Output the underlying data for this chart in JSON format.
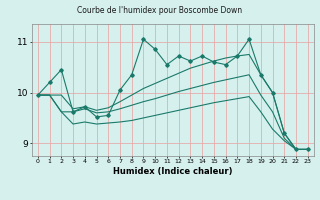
{
  "title": "Courbe de l'humidex pour Boscombe Down",
  "xlabel": "Humidex (Indice chaleur)",
  "bg_color": "#d6f0ee",
  "grid_color": "#e8a0a0",
  "line_color": "#1a7a6a",
  "xlim": [
    -0.5,
    23.5
  ],
  "ylim": [
    8.75,
    11.35
  ],
  "yticks": [
    9,
    10,
    11
  ],
  "xticks": [
    0,
    1,
    2,
    3,
    4,
    5,
    6,
    7,
    8,
    9,
    10,
    11,
    12,
    13,
    14,
    15,
    16,
    17,
    18,
    19,
    20,
    21,
    22,
    23
  ],
  "main_x": [
    0,
    1,
    2,
    3,
    4,
    5,
    6,
    7,
    8,
    9,
    10,
    11,
    12,
    13,
    14,
    15,
    16,
    17,
    18,
    19,
    20,
    21,
    22,
    23
  ],
  "main_y": [
    9.95,
    10.2,
    10.45,
    9.62,
    9.72,
    9.52,
    9.55,
    10.05,
    10.35,
    11.05,
    10.85,
    10.55,
    10.72,
    10.62,
    10.72,
    10.6,
    10.55,
    10.72,
    11.05,
    10.35,
    10.0,
    9.2,
    8.88,
    8.88
  ],
  "upper_x": [
    0,
    1,
    2,
    3,
    4,
    5,
    6,
    7,
    8,
    9,
    10,
    11,
    12,
    13,
    14,
    15,
    16,
    17,
    18,
    19,
    20,
    21,
    22,
    23
  ],
  "upper_y": [
    9.95,
    9.95,
    9.95,
    9.68,
    9.72,
    9.65,
    9.7,
    9.82,
    9.95,
    10.08,
    10.18,
    10.28,
    10.38,
    10.48,
    10.55,
    10.62,
    10.68,
    10.72,
    10.75,
    10.35,
    10.0,
    9.2,
    8.88,
    8.88
  ],
  "mid_x": [
    0,
    1,
    2,
    3,
    4,
    5,
    6,
    7,
    8,
    9,
    10,
    11,
    12,
    13,
    14,
    15,
    16,
    17,
    18,
    19,
    20,
    21,
    22,
    23
  ],
  "mid_y": [
    9.95,
    9.95,
    9.62,
    9.62,
    9.68,
    9.6,
    9.62,
    9.68,
    9.75,
    9.82,
    9.88,
    9.95,
    10.02,
    10.08,
    10.14,
    10.2,
    10.25,
    10.3,
    10.35,
    9.95,
    9.62,
    9.1,
    8.88,
    8.88
  ],
  "lower_x": [
    0,
    1,
    2,
    3,
    4,
    5,
    6,
    7,
    8,
    9,
    10,
    11,
    12,
    13,
    14,
    15,
    16,
    17,
    18,
    19,
    20,
    21,
    22,
    23
  ],
  "lower_y": [
    9.95,
    9.95,
    9.62,
    9.38,
    9.42,
    9.38,
    9.4,
    9.42,
    9.45,
    9.5,
    9.55,
    9.6,
    9.65,
    9.7,
    9.75,
    9.8,
    9.84,
    9.88,
    9.92,
    9.62,
    9.28,
    9.05,
    8.88,
    8.88
  ]
}
